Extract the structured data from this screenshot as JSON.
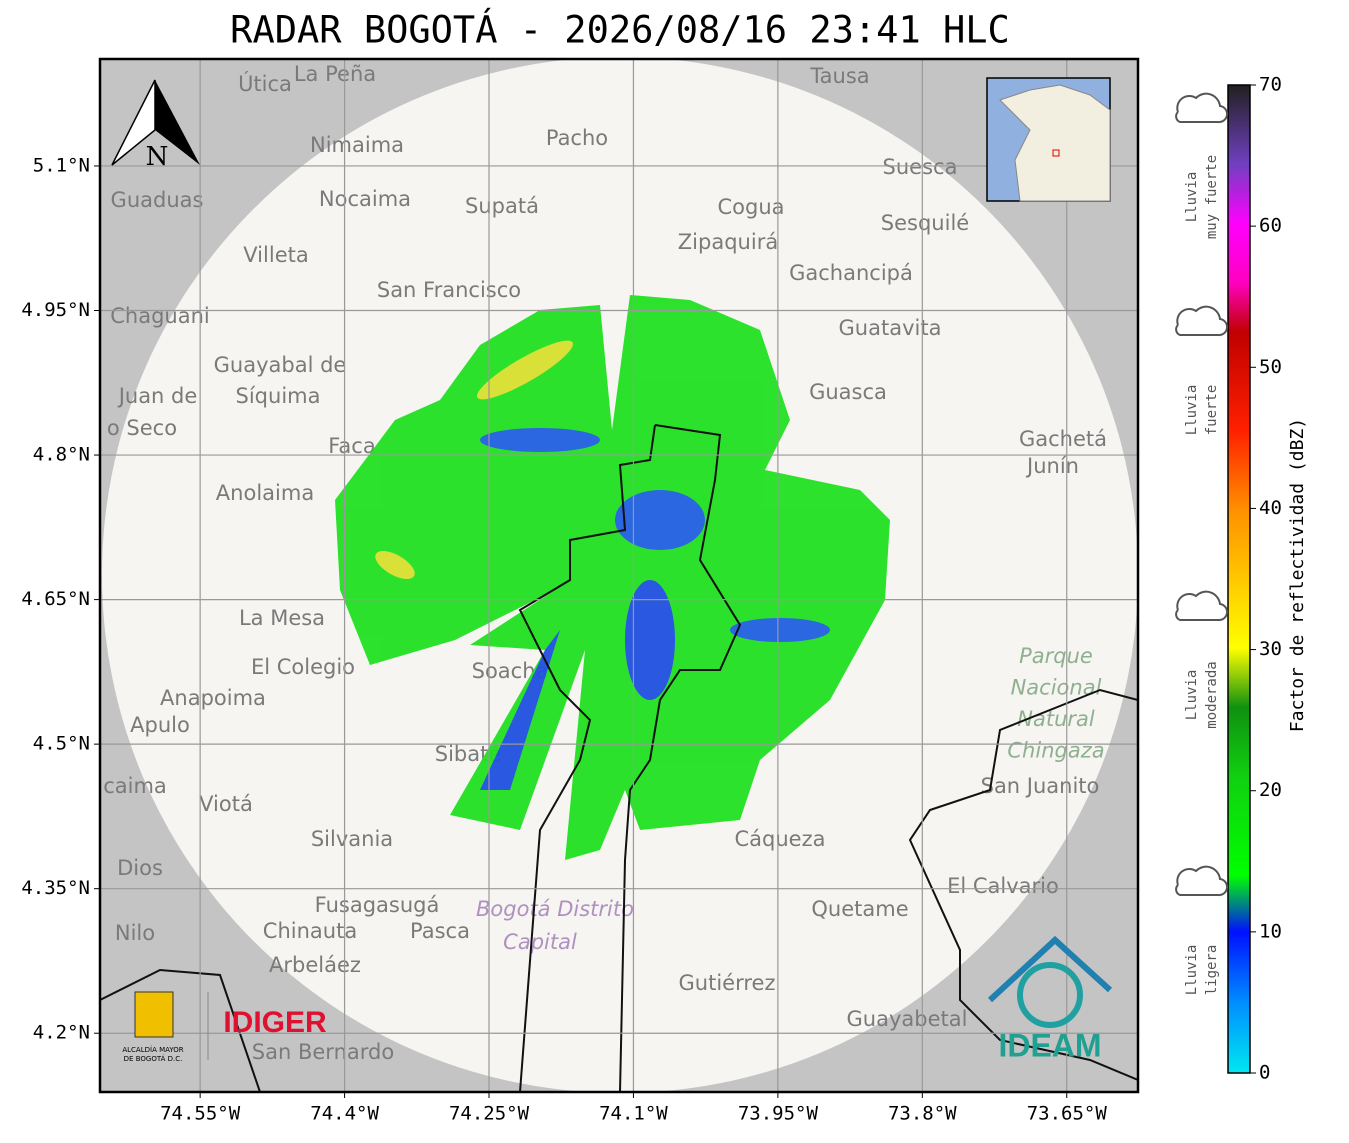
{
  "title": "RADAR BOGOTÁ - 2026/08/16 23:41 HLC",
  "map": {
    "xlim": [
      -74.654,
      -73.576
    ],
    "ylim": [
      4.139,
      5.211
    ],
    "xticks": [
      {
        "value": -74.55,
        "label": "74.55°W"
      },
      {
        "value": -74.4,
        "label": "74.4°W"
      },
      {
        "value": -74.25,
        "label": "74.25°W"
      },
      {
        "value": -74.1,
        "label": "74.1°W"
      },
      {
        "value": -73.95,
        "label": "73.95°W"
      },
      {
        "value": -73.8,
        "label": "73.8°W"
      },
      {
        "value": -73.65,
        "label": "73.65°W"
      }
    ],
    "yticks": [
      {
        "value": 5.1,
        "label": "5.1°N"
      },
      {
        "value": 4.95,
        "label": "4.95°N"
      },
      {
        "value": 4.8,
        "label": "4.8°N"
      },
      {
        "value": 4.65,
        "label": "4.65°N"
      },
      {
        "value": 4.5,
        "label": "4.5°N"
      },
      {
        "value": 4.35,
        "label": "4.35°N"
      },
      {
        "value": 4.2,
        "label": "4.2°N"
      }
    ],
    "grid": true,
    "north": "N",
    "places": [
      "Útica",
      "La Peña",
      "Tausa",
      "Pacho",
      "Nimaima",
      "Guaduas",
      "Nocaima",
      "Supatá",
      "Cogua",
      "Suesca",
      "Sesquilé",
      "Zipaquirá",
      "Villeta",
      "Gachancipá",
      "San Francisco",
      "Chaguani",
      "Guatavita",
      "Guayabal de",
      "Síquima",
      "Juan de",
      "o Seco",
      "Guasca",
      "Faca",
      "Gachetá",
      "Junín",
      "Anolaima",
      "La Mesa",
      "El Colegio",
      "Soacha",
      "Anapoima",
      "Apulo",
      "Sibaté",
      "San Juanito",
      "caima",
      "Viotá",
      "Silvania",
      "Cáqueza",
      "Dios",
      "El Calvario",
      "Fusagasugá",
      "Quetame",
      "Nilo",
      "Chinauta",
      "Pasca",
      "Arbeláez",
      "Gutiérrez",
      "Guayabetal",
      "San Bernardo"
    ],
    "park": [
      "Parque",
      "Nacional",
      "Natural",
      "Chingaza"
    ],
    "district": [
      "Bogotá Distrito",
      "Capital"
    ]
  },
  "colorbar": {
    "label": "Factor de reflectividad (dBZ)",
    "lim": [
      0,
      70
    ],
    "ticks": [
      0,
      10,
      20,
      30,
      40,
      50,
      60,
      70
    ]
  },
  "legend": [
    [
      "Lluvia",
      "muy fuerte"
    ],
    [
      "Lluvia",
      "fuerte"
    ],
    [
      "Lluvia",
      "moderada"
    ],
    [
      "Lluvia",
      "ligera"
    ]
  ],
  "logos": {
    "alcaldia": [
      "ALCALDÍA MAYOR",
      "DE BOGOTÁ D.C."
    ],
    "idiger": "IDIGER",
    "ideam": "IDEAM"
  }
}
